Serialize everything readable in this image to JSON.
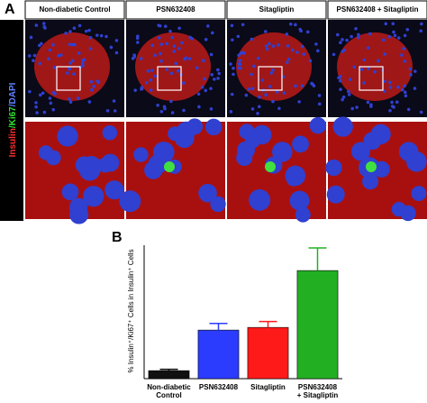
{
  "panel_a": {
    "label": "A",
    "side_label": [
      "Insulin",
      "/Ki67",
      "/DAPI"
    ],
    "side_colors": [
      "#ff3030",
      "#30e030",
      "#6080ff"
    ],
    "columns": [
      "Non-diabetic Control",
      "PSN632408",
      "Sitagliptin",
      "PSN632408 + Sitagliptin"
    ]
  },
  "chart_data": {
    "type": "bar",
    "panel_label": "B",
    "ylabel": "% Insulin⁺/Ki67⁺ Cells in Insulin⁺ Cells",
    "categories": [
      [
        "Non-diabetic",
        "Control"
      ],
      [
        "PSN632408"
      ],
      [
        "Sitagliptin"
      ],
      [
        "PSN632408",
        "+ Sitagliptin"
      ]
    ],
    "values": [
      0.3,
      1.82,
      1.92,
      4.05
    ],
    "errors": [
      0.05,
      0.25,
      0.22,
      0.85
    ],
    "colors": [
      "#111111",
      "#2b3cff",
      "#ff1a1a",
      "#22b022"
    ],
    "ylim": [
      0,
      5
    ]
  }
}
